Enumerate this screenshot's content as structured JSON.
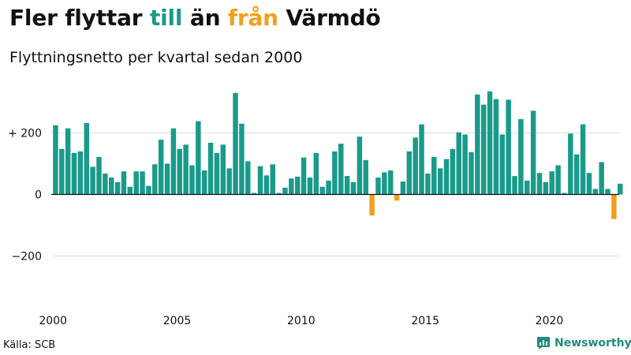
{
  "title": {
    "part1": "Fler flyttar ",
    "part2": "till",
    "part3": " än ",
    "part4": "från",
    "part5": " Värmdö"
  },
  "subtitle": "Flyttningsnetto per kvartal sedan 2000",
  "source": "Källa: SCB",
  "brand": {
    "name": "Newsworthy",
    "icon": "newsworthy-logo-icon"
  },
  "colors": {
    "positive": "#1a9a8a",
    "negative": "#f29f1c",
    "title_accent_in": "#1a9a8a",
    "title_accent_out": "#f29f1c",
    "grid": "#dddddd",
    "axis": "#111111",
    "brand": "#1e8c7d"
  },
  "chart_data": {
    "type": "bar",
    "title": "Fler flyttar till än från Värmdö",
    "subtitle": "Flyttningsnetto per kvartal sedan 2000",
    "xlabel": "",
    "ylabel": "",
    "ylim": [
      -370,
      340
    ],
    "yticks": [
      -200,
      0,
      200
    ],
    "ytick_labels": [
      "−200",
      "0",
      "+ 200"
    ],
    "xticks": [
      2000,
      2005,
      2010,
      2015,
      2020
    ],
    "xtick_labels": [
      "2000",
      "2005",
      "2010",
      "2015",
      "2020"
    ],
    "grid": true,
    "start_year": 2000,
    "periods_per_year": 4,
    "categories": [
      "2000 Q1",
      "2000 Q2",
      "2000 Q3",
      "2000 Q4",
      "2001 Q1",
      "2001 Q2",
      "2001 Q3",
      "2001 Q4",
      "2002 Q1",
      "2002 Q2",
      "2002 Q3",
      "2002 Q4",
      "2003 Q1",
      "2003 Q2",
      "2003 Q3",
      "2003 Q4",
      "2004 Q1",
      "2004 Q2",
      "2004 Q3",
      "2004 Q4",
      "2005 Q1",
      "2005 Q2",
      "2005 Q3",
      "2005 Q4",
      "2006 Q1",
      "2006 Q2",
      "2006 Q3",
      "2006 Q4",
      "2007 Q1",
      "2007 Q2",
      "2007 Q3",
      "2007 Q4",
      "2008 Q1",
      "2008 Q2",
      "2008 Q3",
      "2008 Q4",
      "2009 Q1",
      "2009 Q2",
      "2009 Q3",
      "2009 Q4",
      "2010 Q1",
      "2010 Q2",
      "2010 Q3",
      "2010 Q4",
      "2011 Q1",
      "2011 Q2",
      "2011 Q3",
      "2011 Q4",
      "2012 Q1",
      "2012 Q2",
      "2012 Q3",
      "2012 Q4",
      "2013 Q1",
      "2013 Q2",
      "2013 Q3",
      "2013 Q4",
      "2014 Q1",
      "2014 Q2",
      "2014 Q3",
      "2014 Q4",
      "2015 Q1",
      "2015 Q2",
      "2015 Q3",
      "2015 Q4",
      "2016 Q1",
      "2016 Q2",
      "2016 Q3",
      "2016 Q4",
      "2017 Q1",
      "2017 Q2",
      "2017 Q3",
      "2017 Q4",
      "2018 Q1",
      "2018 Q2",
      "2018 Q3",
      "2018 Q4",
      "2019 Q1",
      "2019 Q2",
      "2019 Q3",
      "2019 Q4",
      "2020 Q1",
      "2020 Q2",
      "2020 Q3",
      "2020 Q4",
      "2021 Q1",
      "2021 Q2",
      "2021 Q3",
      "2021 Q4",
      "2022 Q1",
      "2022 Q2",
      "2022 Q3",
      "2022 Q4"
    ],
    "values": [
      225,
      148,
      215,
      135,
      140,
      232,
      90,
      122,
      68,
      55,
      40,
      75,
      25,
      75,
      75,
      28,
      98,
      178,
      100,
      215,
      148,
      162,
      95,
      238,
      78,
      168,
      135,
      162,
      85,
      330,
      230,
      108,
      5,
      92,
      62,
      98,
      5,
      22,
      52,
      58,
      120,
      55,
      135,
      25,
      45,
      140,
      165,
      60,
      40,
      188,
      112,
      -68,
      55,
      72,
      78,
      -20,
      42,
      140,
      185,
      228,
      68,
      122,
      85,
      115,
      148,
      202,
      195,
      138,
      325,
      292,
      335,
      310,
      195,
      308,
      60,
      245,
      45,
      272,
      70,
      40,
      75,
      95,
      5,
      198,
      130,
      228,
      70,
      18,
      105,
      18,
      -80,
      35
    ]
  }
}
